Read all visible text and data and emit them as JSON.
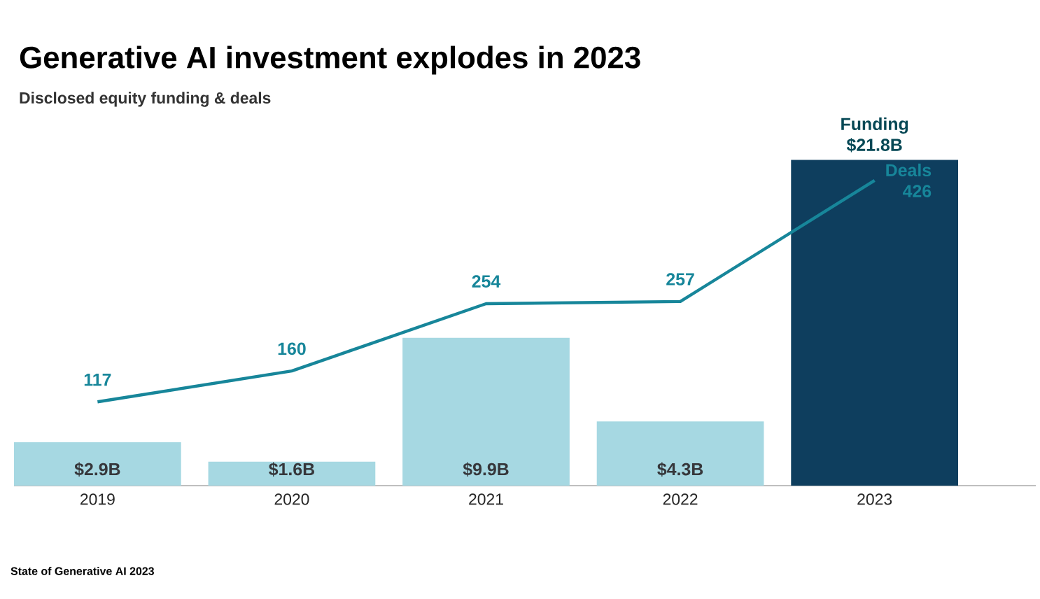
{
  "chart_data": {
    "type": "bar",
    "title": "Generative AI investment explodes in 2023",
    "subtitle": "Disclosed equity funding & deals",
    "categories": [
      "2019",
      "2020",
      "2021",
      "2022",
      "2023"
    ],
    "tick_labels": "x",
    "series": [
      {
        "name": "Funding",
        "colors": [
          "#a6d8e2",
          "#a6d8e2",
          "#a6d8e2",
          "#a6d8e2",
          "#0e3e5e"
        ],
        "values": [
          2.9,
          1.6,
          9.9,
          4.3,
          21.8
        ],
        "value_labels": [
          "$2.9B",
          "$1.6B",
          "$9.9B",
          "$4.3B",
          "$21.8B"
        ]
      },
      {
        "name": "Deals",
        "type": "line",
        "axis": "y2",
        "color": "#17869a",
        "values": [
          117,
          160,
          254,
          257,
          426
        ],
        "value_labels": [
          "117",
          "160",
          "254",
          "257",
          "426"
        ]
      }
    ],
    "annotations": [
      "State of Generative AI 2023"
    ]
  }
}
